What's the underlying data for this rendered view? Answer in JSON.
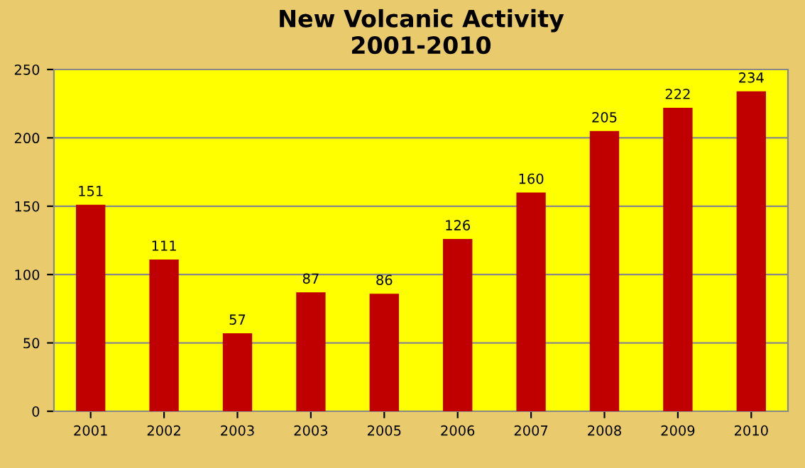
{
  "chart_data": {
    "type": "bar",
    "title": "New Volcanic Activity\n2001-2010",
    "categories": [
      "2001",
      "2002",
      "2003",
      "2003",
      "2005",
      "2006",
      "2007",
      "2008",
      "2009",
      "2010"
    ],
    "values": [
      151,
      111,
      57,
      87,
      86,
      126,
      160,
      205,
      222,
      234
    ],
    "color": "#c00000",
    "data_labels": true,
    "grid": "y",
    "ylim": [
      0,
      250
    ],
    "yticks": [
      0,
      50,
      100,
      150,
      200,
      250
    ]
  }
}
